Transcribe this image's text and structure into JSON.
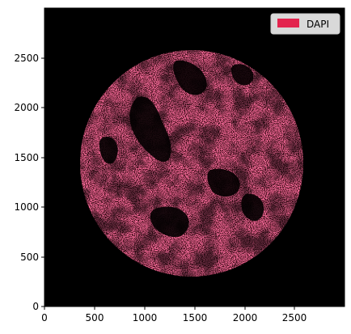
{
  "figure": {
    "image_description": "Circular tissue core rendered as dense crimson speckles (DAPI signal) on a black background, with darker void regions inside.",
    "background_color": "#000000",
    "signal_color": "#e3244e",
    "x_axis": {
      "range": [
        0,
        3000
      ],
      "ticks": [
        "0",
        "500",
        "1000",
        "1500",
        "2000",
        "2500"
      ]
    },
    "y_axis": {
      "range": [
        0,
        3000
      ],
      "ticks": [
        "0",
        "500",
        "1000",
        "1500",
        "2000",
        "2500"
      ]
    },
    "legend": {
      "placement": "top-right",
      "items": [
        {
          "label": "DAPI",
          "color": "#e3244e"
        }
      ]
    }
  }
}
